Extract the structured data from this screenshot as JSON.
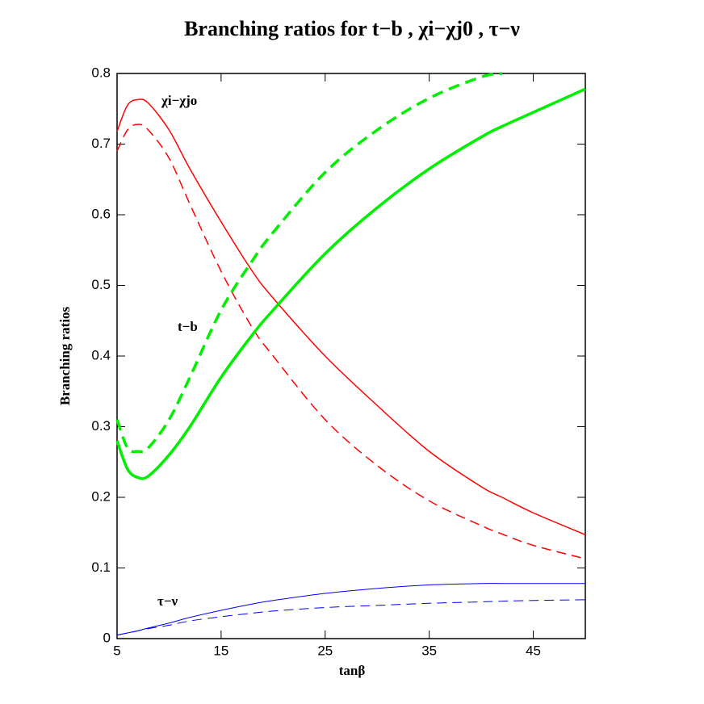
{
  "chart_data": {
    "type": "line",
    "title": "Branching ratios  for  t−b , χi−χj0 , τ−ν",
    "xlabel": "tanβ",
    "ylabel": "Branching ratios",
    "annotations": [
      "χi−χjo",
      "t−b",
      "τ−ν"
    ],
    "x": [
      5,
      6,
      7,
      8,
      10,
      12,
      15,
      18,
      20,
      25,
      30,
      35,
      40,
      42,
      45,
      50
    ],
    "series": [
      {
        "color": "#ff0000",
        "dashed": false,
        "width": 1.5,
        "values": [
          0.718,
          0.755,
          0.763,
          0.758,
          0.72,
          0.665,
          0.59,
          0.52,
          0.482,
          0.4,
          0.33,
          0.265,
          0.215,
          0.2,
          0.178,
          0.147
        ]
      },
      {
        "color": "#ff0000",
        "dashed": true,
        "width": 1.5,
        "values": [
          0.69,
          0.72,
          0.728,
          0.72,
          0.68,
          0.615,
          0.52,
          0.44,
          0.4,
          0.31,
          0.245,
          0.195,
          0.16,
          0.148,
          0.132,
          0.113
        ]
      },
      {
        "color": "#00ee00",
        "dashed": false,
        "width": 3.5,
        "values": [
          0.28,
          0.24,
          0.228,
          0.23,
          0.26,
          0.3,
          0.37,
          0.43,
          0.465,
          0.545,
          0.61,
          0.665,
          0.71,
          0.725,
          0.745,
          0.778
        ]
      },
      {
        "color": "#00ee00",
        "dashed": true,
        "width": 3.5,
        "values": [
          0.31,
          0.27,
          0.265,
          0.27,
          0.31,
          0.37,
          0.465,
          0.535,
          0.575,
          0.66,
          0.72,
          0.765,
          0.795,
          0.8,
          null,
          null
        ]
      },
      {
        "color": "#0000ff",
        "dashed": false,
        "width": 1,
        "values": [
          0.005,
          0.008,
          0.011,
          0.015,
          0.022,
          0.03,
          0.04,
          0.049,
          0.054,
          0.064,
          0.071,
          0.076,
          0.078,
          0.078,
          0.078,
          0.078
        ]
      },
      {
        "color": "#0000ff",
        "dashed": true,
        "width": 1,
        "values": [
          0.005,
          0.008,
          0.011,
          0.014,
          0.019,
          0.025,
          0.031,
          0.036,
          0.039,
          0.044,
          0.047,
          0.05,
          0.052,
          0.053,
          0.054,
          0.055
        ]
      }
    ],
    "xlim": [
      5,
      50
    ],
    "ylim": [
      0,
      0.8
    ],
    "xticks": [
      5,
      15,
      25,
      35,
      45
    ],
    "yticks": [
      0,
      0.1,
      0.2,
      0.3,
      0.4,
      0.5,
      0.6,
      0.7,
      0.8
    ]
  }
}
